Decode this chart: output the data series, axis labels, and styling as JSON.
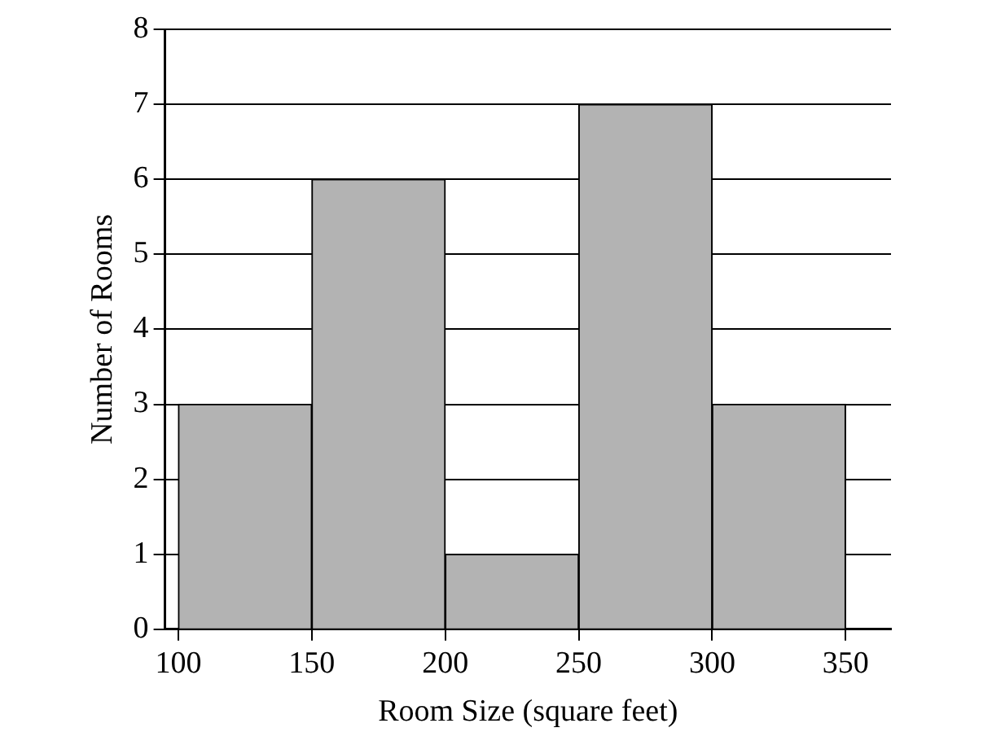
{
  "chart_data": {
    "type": "histogram",
    "xlabel": "Room Size (square feet)",
    "ylabel": "Number of Rooms",
    "bins": [
      100,
      150,
      200,
      250,
      300,
      350
    ],
    "values": [
      3,
      6,
      1,
      7,
      3
    ],
    "color": "#b3b3b3",
    "xlim": [
      95,
      367
    ],
    "xticks": [
      100,
      150,
      200,
      250,
      300,
      350
    ],
    "ylim": [
      0,
      8
    ],
    "yticks": [
      0,
      1,
      2,
      3,
      4,
      5,
      6,
      7,
      8
    ],
    "grid": "y"
  }
}
